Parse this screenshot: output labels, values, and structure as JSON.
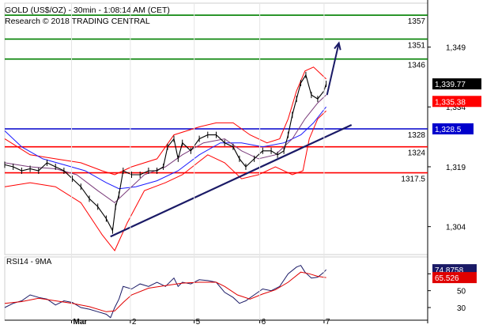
{
  "header": {
    "line1": "GOLD (US$/OZ) - 30min - 1:08:14 AM (CET)",
    "line2": "Research © 2018 TRADING CENTRAL"
  },
  "colors": {
    "resistance": "#008000",
    "support": "#ff0000",
    "pivot": "#0000cc",
    "trend": "#1a1a66",
    "price": "#000000",
    "bollinger": "#ff0000",
    "ma_blue": "#1a1aff",
    "ma_purple": "#7a3b7a",
    "rsi": "#1a1a66",
    "rsi_ma": "#e00000"
  },
  "chart_data": [
    {
      "type": "candlestick",
      "title": "GOLD (US$/OZ) - 30min",
      "ylim": [
        1297,
        1360
      ],
      "y_ticks": [
        "1,349",
        "1,334",
        "1,319",
        "1,304"
      ],
      "y_tick_values": [
        1349,
        1334,
        1319,
        1304
      ],
      "x_tick_labels": [
        "Mar",
        "2",
        "5",
        "6",
        "7"
      ],
      "x_tick_positions": [
        0.158,
        0.297,
        0.448,
        0.603,
        0.755
      ],
      "levels": [
        {
          "label": "1357",
          "value": 1357,
          "kind": "resistance"
        },
        {
          "label": "1351",
          "value": 1351,
          "kind": "resistance"
        },
        {
          "label": "1346",
          "value": 1346,
          "kind": "resistance"
        },
        {
          "label": "1328",
          "value": 1328.5,
          "kind": "pivot"
        },
        {
          "label": "1324",
          "value": 1324,
          "kind": "support"
        },
        {
          "label": "1317.5",
          "value": 1317.5,
          "kind": "support"
        }
      ],
      "last_price_label": "1,339.77",
      "last_price": 1339.77,
      "second_label": "1,335.38",
      "second_value": 1335.38,
      "pivot_tag": "1,328.5",
      "trendline": {
        "from": [
          0.25,
          1301.5
        ],
        "to": [
          0.82,
          1329.5
        ]
      },
      "forecast_arrow": {
        "from": [
          0.762,
          1337
        ],
        "to": [
          0.79,
          1350
        ]
      },
      "price_path": [
        [
          0.0,
          1319.5
        ],
        [
          0.02,
          1319
        ],
        [
          0.04,
          1318
        ],
        [
          0.06,
          1318.5
        ],
        [
          0.08,
          1318
        ],
        [
          0.1,
          1320
        ],
        [
          0.12,
          1319
        ],
        [
          0.14,
          1318
        ],
        [
          0.16,
          1316
        ],
        [
          0.18,
          1314
        ],
        [
          0.2,
          1311
        ],
        [
          0.22,
          1309
        ],
        [
          0.24,
          1306
        ],
        [
          0.255,
          1303
        ],
        [
          0.262,
          1309
        ],
        [
          0.27,
          1312
        ],
        [
          0.28,
          1318
        ],
        [
          0.3,
          1317
        ],
        [
          0.32,
          1317
        ],
        [
          0.34,
          1318
        ],
        [
          0.36,
          1318
        ],
        [
          0.375,
          1319
        ],
        [
          0.385,
          1324
        ],
        [
          0.4,
          1326
        ],
        [
          0.41,
          1321
        ],
        [
          0.42,
          1325
        ],
        [
          0.44,
          1323
        ],
        [
          0.46,
          1326
        ],
        [
          0.48,
          1327
        ],
        [
          0.5,
          1327
        ],
        [
          0.52,
          1325
        ],
        [
          0.54,
          1324
        ],
        [
          0.555,
          1321
        ],
        [
          0.57,
          1319
        ],
        [
          0.59,
          1321
        ],
        [
          0.61,
          1323
        ],
        [
          0.63,
          1323
        ],
        [
          0.645,
          1322
        ],
        [
          0.66,
          1323
        ],
        [
          0.67,
          1327
        ],
        [
          0.68,
          1332
        ],
        [
          0.69,
          1336
        ],
        [
          0.7,
          1340
        ],
        [
          0.712,
          1342
        ],
        [
          0.725,
          1337
        ],
        [
          0.74,
          1336
        ],
        [
          0.755,
          1338
        ],
        [
          0.76,
          1339.77
        ]
      ],
      "bb_upper": [
        [
          0.0,
          1326
        ],
        [
          0.06,
          1322
        ],
        [
          0.12,
          1321
        ],
        [
          0.18,
          1320
        ],
        [
          0.23,
          1318
        ],
        [
          0.26,
          1317
        ],
        [
          0.3,
          1319
        ],
        [
          0.36,
          1321
        ],
        [
          0.4,
          1327
        ],
        [
          0.46,
          1329
        ],
        [
          0.5,
          1330
        ],
        [
          0.54,
          1330
        ],
        [
          0.58,
          1327
        ],
        [
          0.62,
          1325
        ],
        [
          0.65,
          1326
        ],
        [
          0.67,
          1331
        ],
        [
          0.69,
          1338
        ],
        [
          0.71,
          1343
        ],
        [
          0.73,
          1344
        ],
        [
          0.75,
          1342
        ],
        [
          0.76,
          1341
        ]
      ],
      "bb_lower": [
        [
          0.0,
          1314
        ],
        [
          0.06,
          1315
        ],
        [
          0.12,
          1314
        ],
        [
          0.18,
          1310
        ],
        [
          0.23,
          1302
        ],
        [
          0.26,
          1298
        ],
        [
          0.29,
          1305
        ],
        [
          0.33,
          1313
        ],
        [
          0.38,
          1315
        ],
        [
          0.42,
          1317
        ],
        [
          0.48,
          1322
        ],
        [
          0.52,
          1320
        ],
        [
          0.56,
          1316
        ],
        [
          0.6,
          1317
        ],
        [
          0.64,
          1319
        ],
        [
          0.68,
          1317
        ],
        [
          0.705,
          1318
        ],
        [
          0.72,
          1326
        ],
        [
          0.74,
          1331
        ],
        [
          0.76,
          1333
        ]
      ],
      "ma_blue": [
        [
          0.0,
          1328
        ],
        [
          0.04,
          1324
        ],
        [
          0.09,
          1321
        ],
        [
          0.14,
          1319.5
        ],
        [
          0.19,
          1318
        ],
        [
          0.24,
          1315
        ],
        [
          0.27,
          1313.5
        ],
        [
          0.31,
          1314
        ],
        [
          0.36,
          1315.5
        ],
        [
          0.41,
          1318
        ],
        [
          0.46,
          1322
        ],
        [
          0.51,
          1325
        ],
        [
          0.56,
          1325
        ],
        [
          0.61,
          1324
        ],
        [
          0.66,
          1325
        ],
        [
          0.7,
          1327
        ],
        [
          0.73,
          1330
        ],
        [
          0.76,
          1334
        ]
      ],
      "ma_purple": [
        [
          0.0,
          1320
        ],
        [
          0.06,
          1319
        ],
        [
          0.12,
          1318.5
        ],
        [
          0.17,
          1317
        ],
        [
          0.22,
          1313
        ],
        [
          0.26,
          1310
        ],
        [
          0.29,
          1313
        ],
        [
          0.33,
          1317
        ],
        [
          0.38,
          1319
        ],
        [
          0.42,
          1322
        ],
        [
          0.47,
          1325
        ],
        [
          0.52,
          1326
        ],
        [
          0.56,
          1323
        ],
        [
          0.6,
          1321
        ],
        [
          0.64,
          1322
        ],
        [
          0.68,
          1326
        ],
        [
          0.71,
          1331
        ],
        [
          0.74,
          1335
        ],
        [
          0.76,
          1337
        ]
      ]
    },
    {
      "type": "line",
      "title": "RSI14 - 9MA",
      "ylim": [
        15,
        90
      ],
      "y_ticks": [
        "70",
        "50",
        "30"
      ],
      "y_tick_values": [
        70,
        50,
        30
      ],
      "x_tick_labels": [
        "Mar",
        "2",
        "5",
        "6",
        "7"
      ],
      "series": [
        {
          "name": "RSI14",
          "value_label": "74.8758",
          "value": 74.8758,
          "points": [
            [
              0.0,
              30
            ],
            [
              0.02,
              35
            ],
            [
              0.04,
              38
            ],
            [
              0.06,
              45
            ],
            [
              0.08,
              42
            ],
            [
              0.1,
              40
            ],
            [
              0.12,
              33
            ],
            [
              0.14,
              38
            ],
            [
              0.16,
              36
            ],
            [
              0.18,
              30
            ],
            [
              0.2,
              28
            ],
            [
              0.22,
              25
            ],
            [
              0.24,
              22
            ],
            [
              0.25,
              18
            ],
            [
              0.26,
              30
            ],
            [
              0.27,
              40
            ],
            [
              0.28,
              55
            ],
            [
              0.3,
              52
            ],
            [
              0.32,
              58
            ],
            [
              0.34,
              55
            ],
            [
              0.36,
              60
            ],
            [
              0.38,
              55
            ],
            [
              0.4,
              65
            ],
            [
              0.41,
              55
            ],
            [
              0.42,
              60
            ],
            [
              0.44,
              58
            ],
            [
              0.46,
              63
            ],
            [
              0.48,
              62
            ],
            [
              0.5,
              60
            ],
            [
              0.52,
              48
            ],
            [
              0.54,
              42
            ],
            [
              0.555,
              35
            ],
            [
              0.57,
              38
            ],
            [
              0.59,
              45
            ],
            [
              0.61,
              52
            ],
            [
              0.63,
              50
            ],
            [
              0.65,
              55
            ],
            [
              0.67,
              70
            ],
            [
              0.69,
              78
            ],
            [
              0.7,
              80
            ],
            [
              0.71,
              72
            ],
            [
              0.725,
              65
            ],
            [
              0.74,
              66
            ],
            [
              0.755,
              72
            ],
            [
              0.76,
              74.9
            ]
          ]
        },
        {
          "name": "9MA",
          "value_label": "65.526",
          "value": 65.526,
          "points": [
            [
              0.0,
              35
            ],
            [
              0.04,
              37
            ],
            [
              0.08,
              41
            ],
            [
              0.12,
              38
            ],
            [
              0.16,
              35
            ],
            [
              0.2,
              31
            ],
            [
              0.24,
              25
            ],
            [
              0.26,
              26
            ],
            [
              0.28,
              36
            ],
            [
              0.3,
              45
            ],
            [
              0.34,
              53
            ],
            [
              0.38,
              56
            ],
            [
              0.42,
              59
            ],
            [
              0.46,
              60
            ],
            [
              0.5,
              60
            ],
            [
              0.52,
              55
            ],
            [
              0.55,
              45
            ],
            [
              0.58,
              40
            ],
            [
              0.61,
              46
            ],
            [
              0.64,
              51
            ],
            [
              0.67,
              60
            ],
            [
              0.7,
              72
            ],
            [
              0.72,
              70
            ],
            [
              0.74,
              67
            ],
            [
              0.76,
              65.5
            ]
          ]
        }
      ]
    }
  ]
}
